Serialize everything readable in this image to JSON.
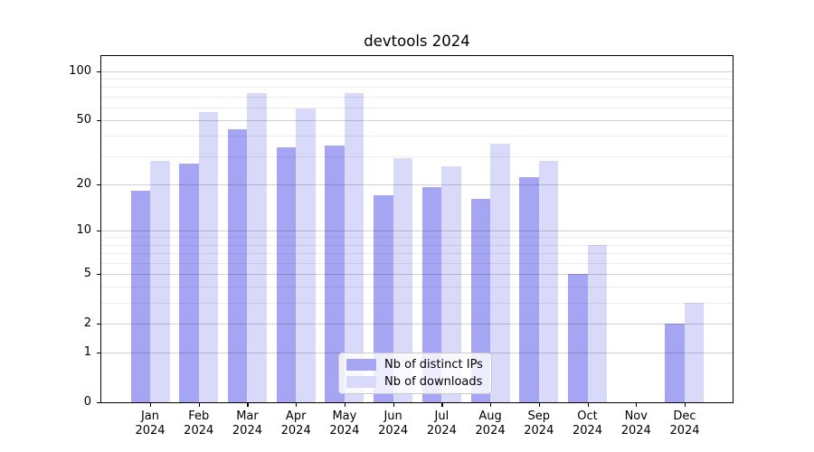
{
  "title": "devtools 2024",
  "chart_data": {
    "type": "bar",
    "title": "devtools 2024",
    "categories": [
      "Jan",
      "Feb",
      "Mar",
      "Apr",
      "May",
      "Jun",
      "Jul",
      "Aug",
      "Sep",
      "Oct",
      "Nov",
      "Dec"
    ],
    "category_year_line": "2024",
    "series": [
      {
        "name": "Nb of distinct IPs",
        "color": "#a5a5f4",
        "values": [
          18,
          27,
          44,
          34,
          35,
          17,
          19,
          16,
          22,
          5,
          0,
          2
        ]
      },
      {
        "name": "Nb of downloads",
        "color": "#d9d9f9",
        "values": [
          28,
          56,
          74,
          59,
          74,
          29,
          26,
          36,
          28,
          8,
          0,
          3
        ]
      }
    ],
    "xlabel": "",
    "ylabel": "",
    "yscale": "log1p",
    "ylim": [
      0,
      124
    ],
    "y_ticks": [
      0,
      1,
      2,
      5,
      10,
      20,
      50,
      100
    ],
    "y_minor_gridlines": [
      3,
      4,
      6,
      7,
      8,
      9,
      30,
      40,
      60,
      70,
      80,
      90
    ],
    "grid": "horizontal",
    "legend_position": "lower-center"
  },
  "colors": {
    "background": "#ffffff",
    "spine": "#000000",
    "major_grid": "#d6d6d6",
    "minor_grid": "#ececec",
    "series_ips": "#a5a5f4",
    "series_downloads": "#d9d9f9"
  }
}
